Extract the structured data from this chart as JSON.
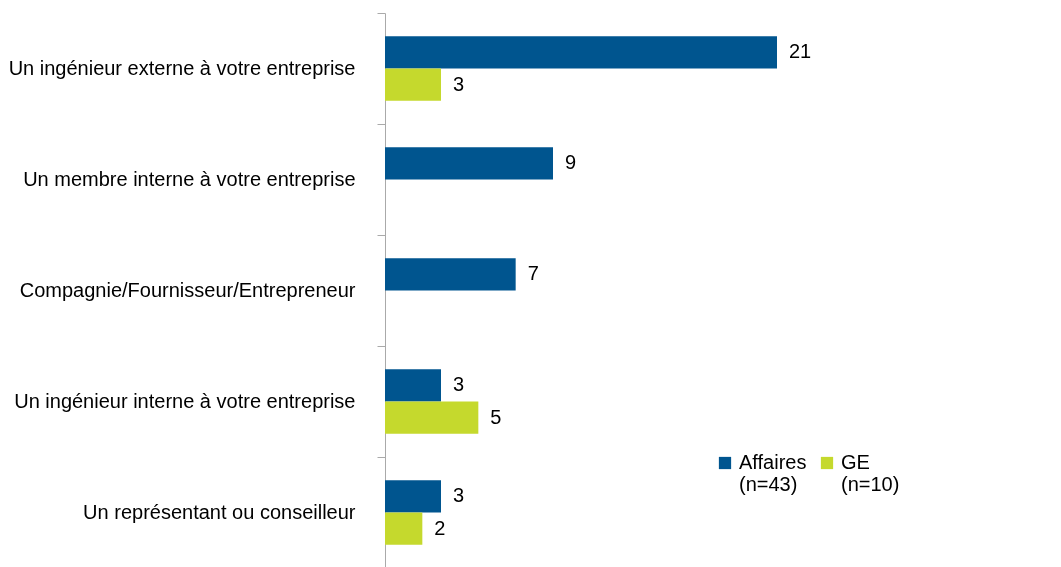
{
  "chart_data": {
    "type": "bar",
    "orientation": "horizontal",
    "categories": [
      "Un ingénieur externe à votre entreprise",
      "Un membre interne à votre entreprise",
      "Compagnie/Fournisseur/Entrepreneur",
      "Un ingénieur interne à votre entreprise",
      "Un représentant ou conseilleur"
    ],
    "series": [
      {
        "name": "Affaires (n=43)",
        "color": "#00558f",
        "values": [
          21,
          9,
          7,
          3,
          3
        ]
      },
      {
        "name": "GE (n=10)",
        "color": "#c5d92d",
        "values": [
          3,
          null,
          null,
          5,
          2
        ]
      }
    ],
    "data_labels": true,
    "legend": "bottom right",
    "grid": false
  }
}
